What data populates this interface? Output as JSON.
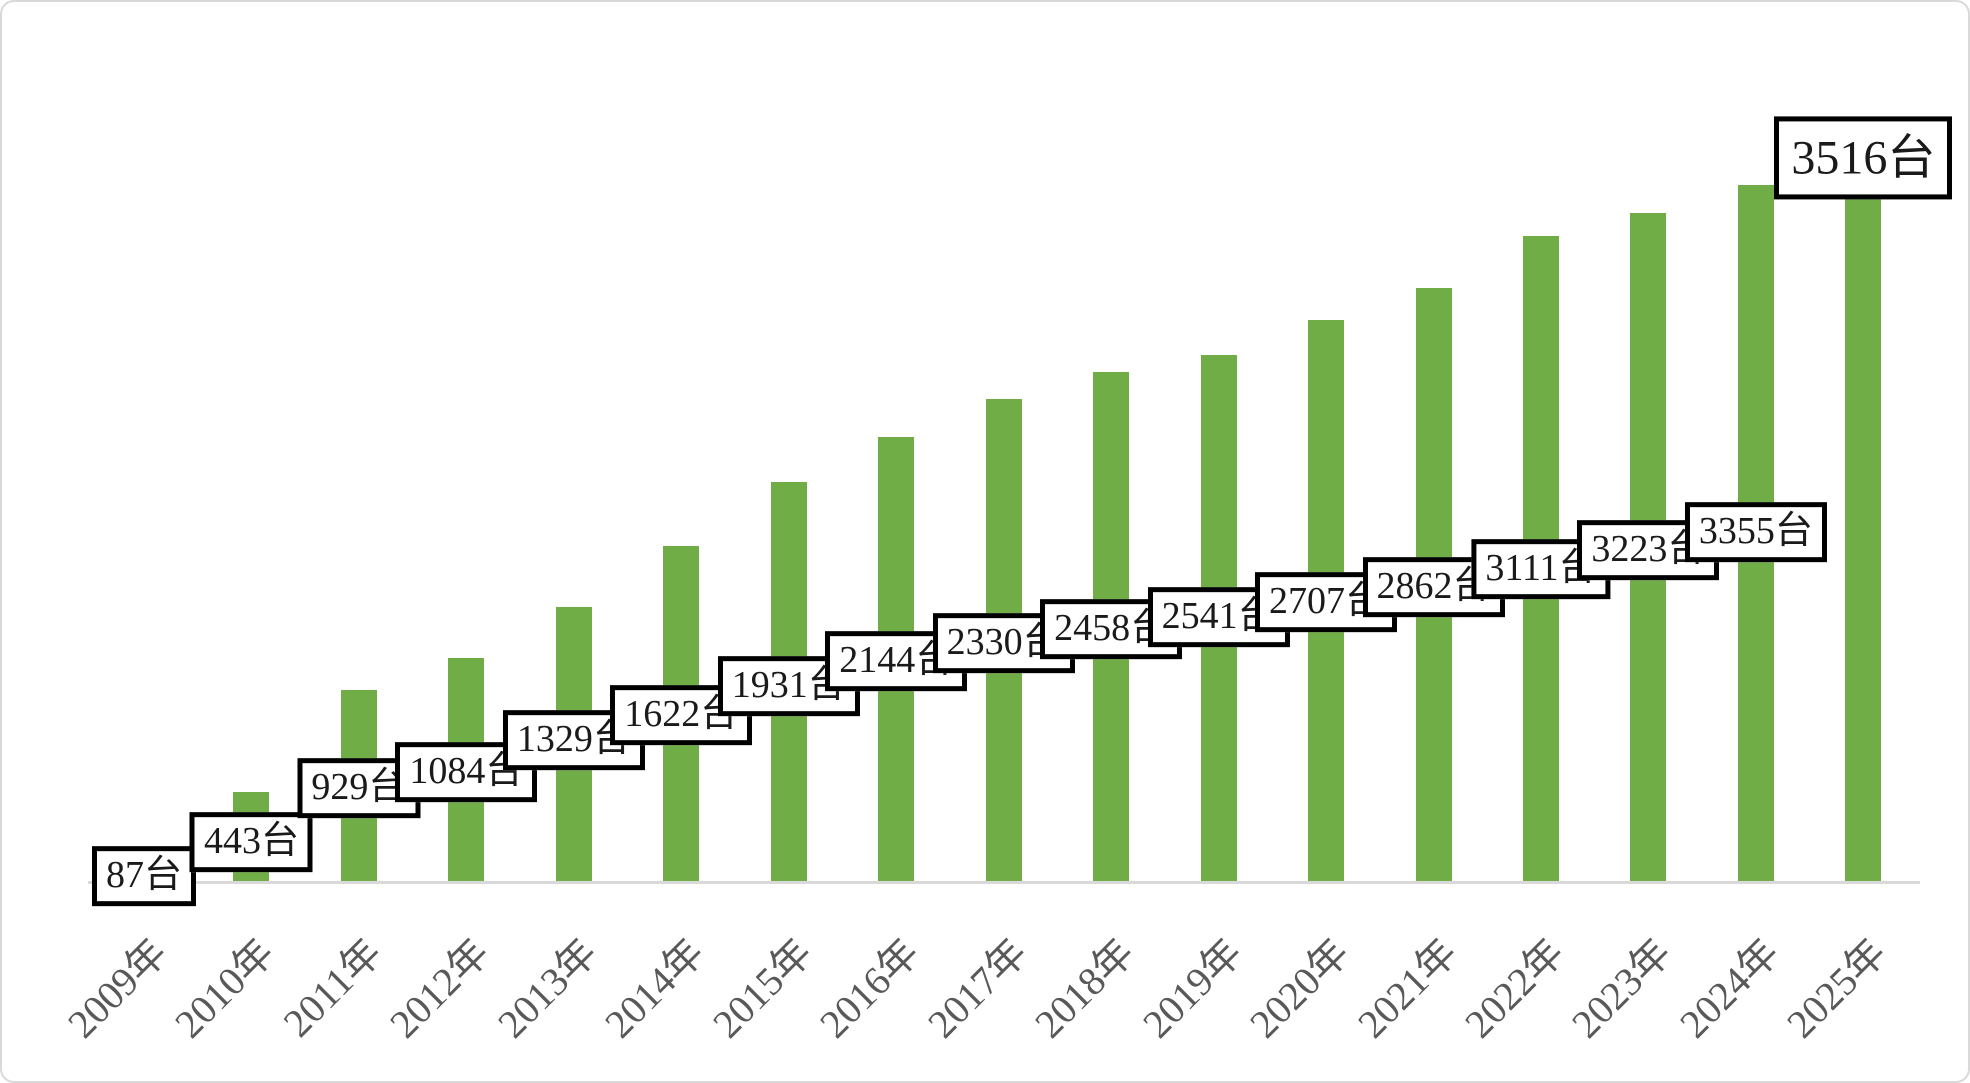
{
  "chart_data": {
    "type": "bar",
    "title": "",
    "unit_suffix": "台",
    "categories": [
      "2009年",
      "2010年",
      "2011年",
      "2012年",
      "2013年",
      "2014年",
      "2015年",
      "2016年",
      "2017年",
      "2018年",
      "2019年",
      "2020年",
      "2021年",
      "2022年",
      "2023年",
      "2024年",
      "2025年"
    ],
    "years": [
      2009,
      2010,
      2011,
      2012,
      2013,
      2014,
      2015,
      2016,
      2017,
      2018,
      2019,
      2020,
      2021,
      2022,
      2023,
      2024,
      2025
    ],
    "values": [
      87,
      443,
      929,
      1084,
      1329,
      1622,
      1931,
      2144,
      2330,
      2458,
      2541,
      2707,
      2862,
      3111,
      3223,
      3355,
      3516
    ],
    "data_labels": [
      "87台",
      "443台",
      "929台",
      "1084台",
      "1329台",
      "1622台",
      "1931台",
      "2144台",
      "2330台",
      "2458台",
      "2541台",
      "2707台",
      "2862台",
      "3111台",
      "3223台",
      "3355台",
      "3516台"
    ],
    "ylim": [
      0,
      3516
    ],
    "grid": false,
    "legend": "none",
    "bar_color": "#70AD47",
    "axis_color": "#D9D9D9",
    "frame_color": "#D9D9D9",
    "data_label_text_color": "#1a1a1a",
    "data_label_border_color": "#000000",
    "data_label_fill": "#FFFFFF",
    "tick_label_color": "#595959",
    "data_label_style": "boxed, black border, staircase arrangement",
    "highlighted_label": "3516台"
  }
}
